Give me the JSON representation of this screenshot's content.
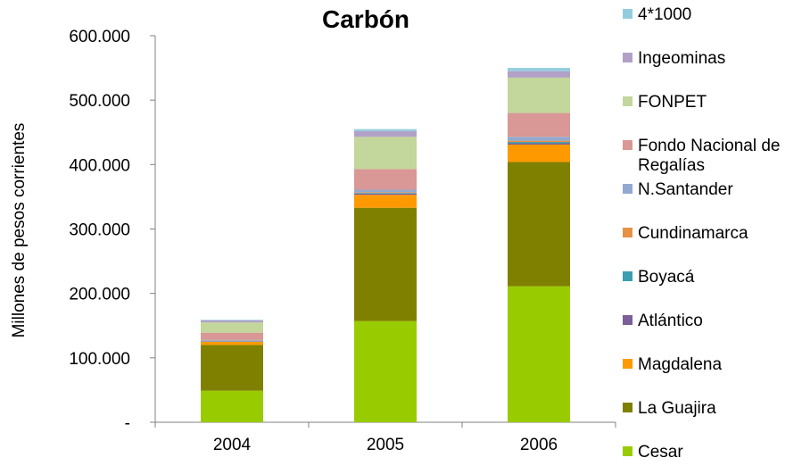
{
  "chart_data": {
    "type": "bar",
    "stacked": true,
    "title": "Carbón",
    "xlabel": "",
    "ylabel": "Millones de pesos corrientes",
    "categories": [
      "2004",
      "2005",
      "2006"
    ],
    "ylim": [
      0,
      600000
    ],
    "yticks": [
      {
        "value": 0,
        "label": "-"
      },
      {
        "value": 100000,
        "label": "100.000"
      },
      {
        "value": 200000,
        "label": "200.000"
      },
      {
        "value": 300000,
        "label": "300.000"
      },
      {
        "value": 400000,
        "label": "400.000"
      },
      {
        "value": 500000,
        "label": "500.000"
      },
      {
        "value": 600000,
        "label": "600.000"
      }
    ],
    "grid": false,
    "legend_position": "right",
    "series": [
      {
        "name": "Cesar",
        "color": "#99CC00",
        "values": [
          49000,
          157000,
          211000
        ]
      },
      {
        "name": "La Guajira",
        "color": "#808000",
        "values": [
          71000,
          176000,
          193000
        ]
      },
      {
        "name": "Magdalena",
        "color": "#FF9900",
        "values": [
          5000,
          20000,
          27000
        ]
      },
      {
        "name": "Atlántico",
        "color": "#7C5F96",
        "values": [
          500,
          2000,
          2000
        ]
      },
      {
        "name": "Boyacá",
        "color": "#3B9FB0",
        "values": [
          500,
          1000,
          2000
        ]
      },
      {
        "name": "Cundinamarca",
        "color": "#E69244",
        "values": [
          500,
          1000,
          2000
        ]
      },
      {
        "name": "N.Santander",
        "color": "#93A9CF",
        "values": [
          1500,
          4000,
          6000
        ]
      },
      {
        "name": "Fondo Nacional de Regalías",
        "color": "#D99795",
        "values": [
          11000,
          32000,
          37000
        ]
      },
      {
        "name": "FONPET",
        "color": "#C3D69B",
        "values": [
          16000,
          50000,
          55000
        ]
      },
      {
        "name": "Ingeominas",
        "color": "#B2A1C7",
        "values": [
          3000,
          9000,
          10000
        ]
      },
      {
        "name": "4*1000",
        "color": "#93CDDD",
        "values": [
          1000,
          3000,
          5000
        ]
      }
    ]
  }
}
